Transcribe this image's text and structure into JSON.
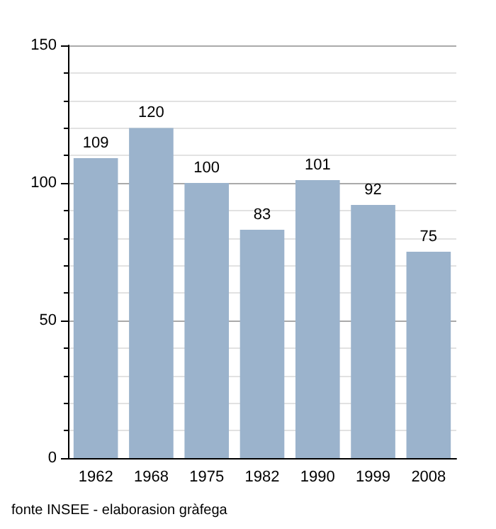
{
  "chart_data": {
    "type": "bar",
    "categories": [
      "1962",
      "1968",
      "1975",
      "1982",
      "1990",
      "1999",
      "2008"
    ],
    "values": [
      109,
      120,
      100,
      83,
      101,
      92,
      75
    ],
    "color": "#9bb3cc",
    "data_labels": true,
    "ylim": [
      0,
      150
    ],
    "yticks": [
      0,
      50,
      100,
      150
    ],
    "grid": "y",
    "annotations": [
      "fonte INSEE - elaborasion gràfega"
    ]
  }
}
